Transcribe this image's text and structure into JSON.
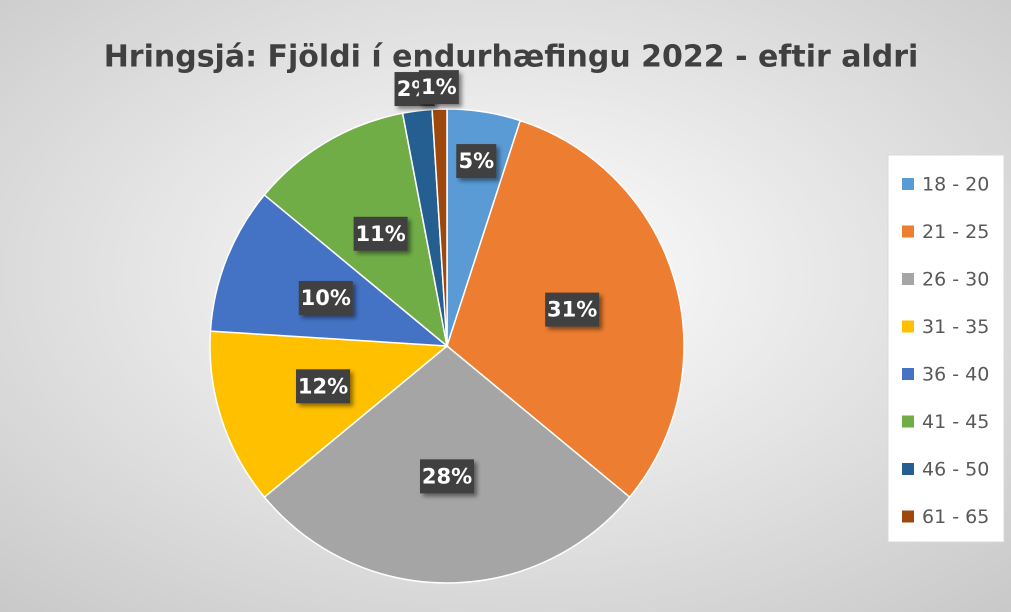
{
  "chart_data": {
    "type": "pie",
    "title": "Hringsjá: Fjöldi í endurhæfingu 2022 - eftir aldri",
    "categories": [
      "18 - 20",
      "21 - 25",
      "26 - 30",
      "31 - 35",
      "36 - 40",
      "41 - 45",
      "46 - 50",
      "61 - 65"
    ],
    "values": [
      5,
      31,
      28,
      12,
      10,
      11,
      2,
      1
    ],
    "value_labels": [
      "5%",
      "31%",
      "28%",
      "12%",
      "10%",
      "11%",
      "2%",
      "1%"
    ],
    "colors": [
      "#5b9bd5",
      "#ed7d31",
      "#a5a5a5",
      "#ffc000",
      "#4472c4",
      "#70ad47",
      "#255e91",
      "#9e480e"
    ],
    "legend": "right"
  }
}
